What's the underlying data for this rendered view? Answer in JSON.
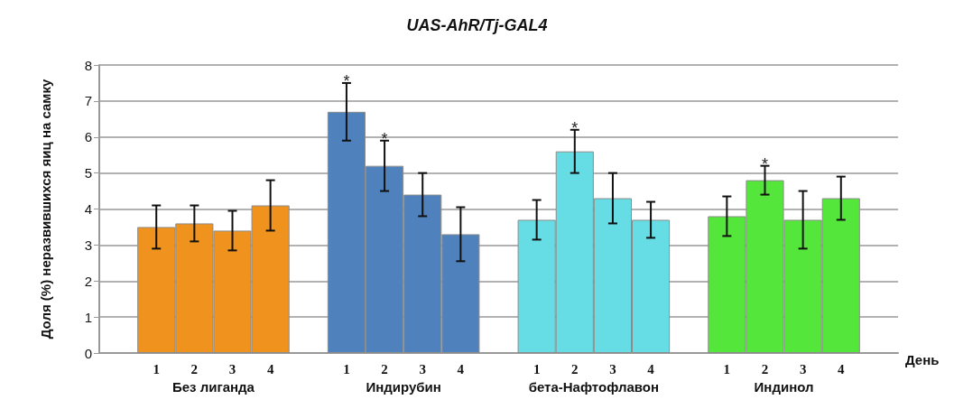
{
  "chart_data": {
    "type": "bar",
    "title": "UAS-AhR/Tj-GAL4",
    "xlabel": "День",
    "ylabel": "Доля (%) неразвившихся яиц на самку",
    "categories": [
      null,
      "1",
      "2",
      "3",
      "4",
      null,
      "1",
      "2",
      "3",
      "4",
      null,
      "1",
      "2",
      "3",
      "4",
      null,
      "1",
      "2",
      "3",
      "4",
      null
    ],
    "series": [
      {
        "name": "Без лиганда",
        "color": "#f0921e",
        "values": [
          null,
          3.5,
          3.6,
          3.4,
          4.1,
          null,
          null,
          null,
          null,
          null,
          null,
          null,
          null,
          null,
          null,
          null,
          null,
          null,
          null,
          null,
          null
        ],
        "errors": [
          null,
          0.6,
          0.5,
          0.55,
          0.7,
          null,
          null,
          null,
          null,
          null,
          null,
          null,
          null,
          null,
          null,
          null,
          null,
          null,
          null,
          null,
          null
        ]
      },
      {
        "name": "Индирубин",
        "color": "#4f81bd",
        "values": [
          null,
          null,
          null,
          null,
          null,
          null,
          6.7,
          5.2,
          4.4,
          3.3,
          null,
          null,
          null,
          null,
          null,
          null,
          null,
          null,
          null,
          null,
          null
        ],
        "errors": [
          null,
          null,
          null,
          null,
          null,
          null,
          0.8,
          0.7,
          0.6,
          0.75,
          null,
          null,
          null,
          null,
          null,
          null,
          null,
          null,
          null,
          null,
          null
        ],
        "value_labels": [
          null,
          null,
          null,
          null,
          null,
          null,
          "*",
          "*",
          null,
          null,
          null,
          null,
          null,
          null,
          null,
          null,
          null,
          null,
          null,
          null,
          null
        ]
      },
      {
        "name": "бета-Нафтофлавон",
        "color": "#66dde4",
        "values": [
          null,
          null,
          null,
          null,
          null,
          null,
          null,
          null,
          null,
          null,
          null,
          3.7,
          5.6,
          4.3,
          3.7,
          null,
          null,
          null,
          null,
          null,
          null
        ],
        "errors": [
          null,
          null,
          null,
          null,
          null,
          null,
          null,
          null,
          null,
          null,
          null,
          0.55,
          0.6,
          0.7,
          0.5,
          null,
          null,
          null,
          null,
          null,
          null
        ],
        "value_labels": [
          null,
          null,
          null,
          null,
          null,
          null,
          null,
          null,
          null,
          null,
          null,
          null,
          "*",
          null,
          null,
          null,
          null,
          null,
          null,
          null,
          null
        ]
      },
      {
        "name": "Индинол",
        "color": "#55e63c",
        "values": [
          null,
          null,
          null,
          null,
          null,
          null,
          null,
          null,
          null,
          null,
          null,
          null,
          null,
          null,
          null,
          null,
          3.8,
          4.8,
          3.7,
          4.3,
          null
        ],
        "errors": [
          null,
          null,
          null,
          null,
          null,
          null,
          null,
          null,
          null,
          null,
          null,
          null,
          null,
          null,
          null,
          null,
          0.55,
          0.4,
          0.8,
          0.6,
          null
        ],
        "value_labels": [
          null,
          null,
          null,
          null,
          null,
          null,
          null,
          null,
          null,
          null,
          null,
          null,
          null,
          null,
          null,
          null,
          null,
          "*",
          null,
          null,
          null
        ]
      }
    ],
    "ylim": [
      0,
      8
    ],
    "yticks": [
      0,
      1,
      2,
      3,
      4,
      5,
      6,
      7,
      8
    ],
    "grid": "y",
    "legend": false
  }
}
